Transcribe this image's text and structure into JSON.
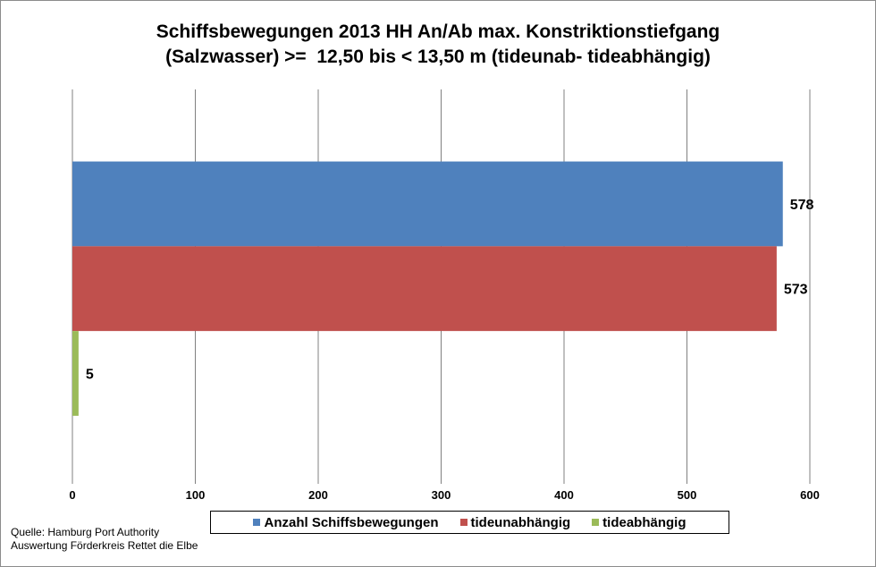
{
  "chart_data": {
    "type": "bar",
    "orientation": "horizontal",
    "title_lines": [
      "Schiffsbewegungen 2013 HH An/Ab max. Konstriktionstiefgang",
      "(Salzwasser) >=  12,50 bis < 13,50 m (tideunab- tideabhängig)"
    ],
    "series": [
      {
        "name": "Anzahl Schiffsbewegungen",
        "value": 578,
        "label": "578",
        "color": "#4f81bd"
      },
      {
        "name": "tideunabhängig",
        "value": 573,
        "label": "573",
        "color": "#c0504d"
      },
      {
        "name": "tideabhängig",
        "value": 5,
        "label": "5",
        "color": "#9bbb59"
      }
    ],
    "xlim": [
      0,
      600
    ],
    "xticks": [
      0,
      100,
      200,
      300,
      400,
      500,
      600
    ],
    "xtick_labels": [
      "0",
      "100",
      "200",
      "300",
      "400",
      "500",
      "600"
    ],
    "grid": "vertical",
    "legend_position": "bottom"
  },
  "source": {
    "line1": "Quelle: Hamburg Port Authority",
    "line2": "Auswertung Förderkreis Rettet  die Elbe"
  }
}
